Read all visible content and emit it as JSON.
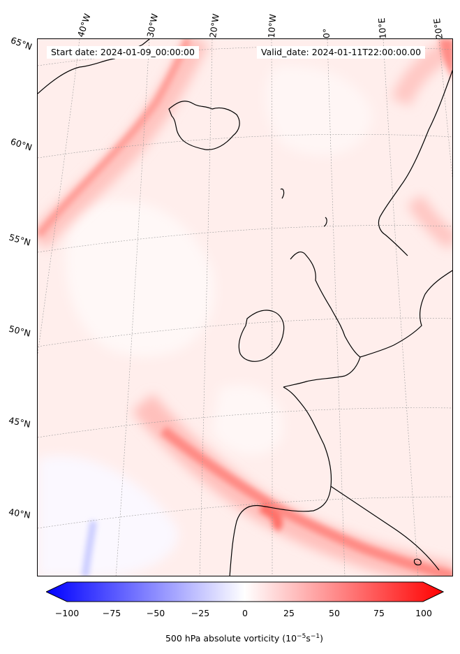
{
  "info": {
    "start_date": "Start date: 2024-01-09_00:00:00",
    "valid_date": "Valid_date: 2024-01-11T22:00:00.00"
  },
  "longitude_labels": [
    "40°W",
    "30°W",
    "20°W",
    "10°W",
    "0°",
    "10°E",
    "20°E"
  ],
  "latitude_labels": [
    "65°N",
    "60°N",
    "55°N",
    "50°N",
    "45°N",
    "40°N"
  ],
  "colorbar": {
    "ticks": [
      "−100",
      "−75",
      "−50",
      "−25",
      "0",
      "25",
      "50",
      "75",
      "100"
    ],
    "title": "500 hPa absolute vorticity (10",
    "title_exp1": "−5",
    "title_mid": "s",
    "title_exp2": "−1",
    "title_end": ")",
    "min_color": "#0000ff",
    "mid_color": "#ffffff",
    "max_color": "#ff0000"
  }
}
